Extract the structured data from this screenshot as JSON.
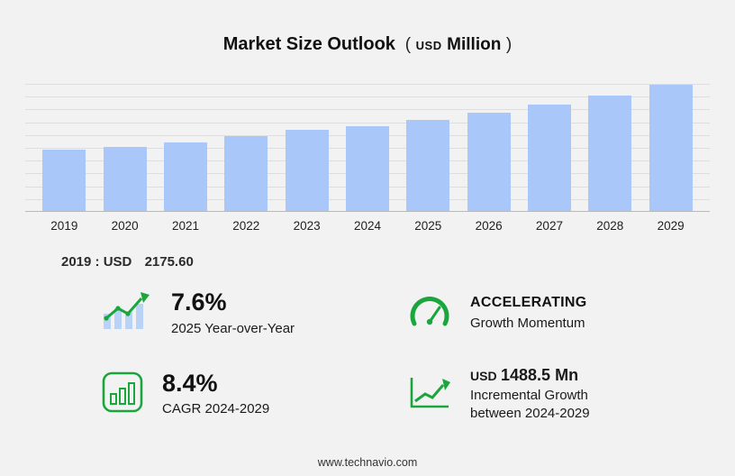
{
  "title": {
    "main": "Market Size Outlook",
    "paren_open": "(",
    "currency": "USD",
    "unit": "Million",
    "paren_close": ")"
  },
  "chart_data": {
    "type": "bar",
    "title": "Market Size Outlook (USD Million)",
    "categories": [
      "2019",
      "2020",
      "2021",
      "2022",
      "2023",
      "2024",
      "2025",
      "2026",
      "2027",
      "2028",
      "2029"
    ],
    "values": [
      2175.6,
      2280,
      2440,
      2650,
      2870,
      2997,
      3224.8,
      3490,
      3780,
      4110,
      4485.5
    ],
    "xlabel": "",
    "ylabel": "",
    "ylim": [
      0,
      4600
    ],
    "grid": true,
    "legend": false,
    "bar_color": "#a9c7f8"
  },
  "annotation": {
    "year": "2019",
    "separator": ":",
    "currency": "USD",
    "value": "2175.60"
  },
  "stats": {
    "yoy": {
      "value": "7.6%",
      "label": "2025 Year-over-Year"
    },
    "momentum": {
      "title": "ACCELERATING",
      "label": "Growth Momentum"
    },
    "cagr": {
      "value": "8.4%",
      "label": "CAGR 2024-2029"
    },
    "incremental": {
      "currency": "USD",
      "value": "1488.5 Mn",
      "label_line1": "Incremental Growth",
      "label_line2": "between 2024-2029"
    }
  },
  "colors": {
    "accent_green": "#1aa63c",
    "bar_blue": "#a9c7f8"
  },
  "footer": {
    "url": "www.technavio.com"
  }
}
